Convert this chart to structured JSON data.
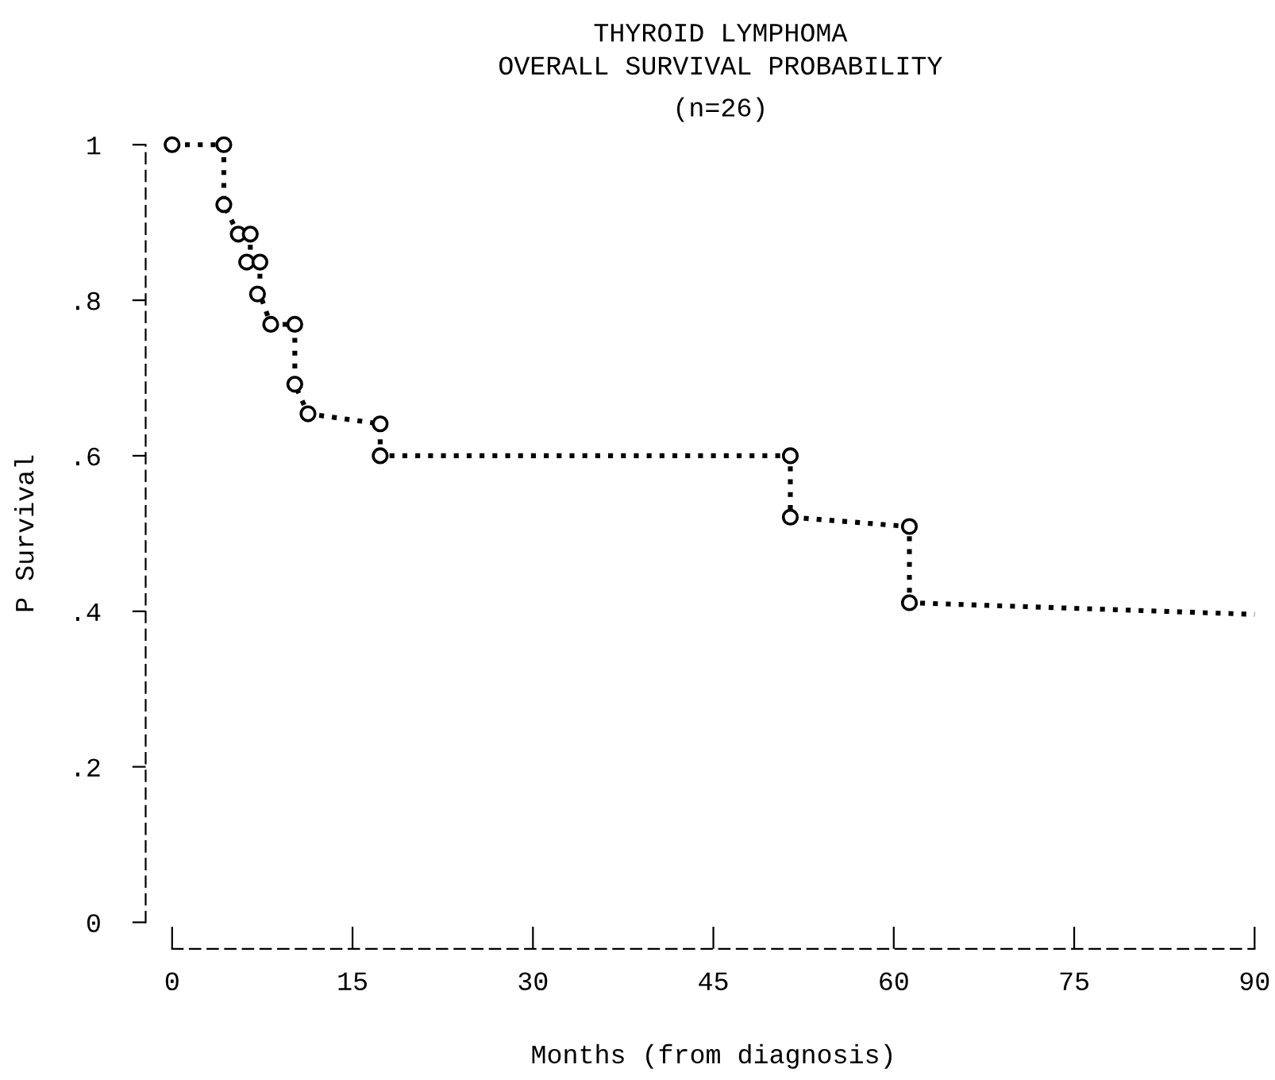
{
  "chart_data": {
    "type": "line",
    "title": "THYROID LYMPHOMA",
    "subtitle": "OVERALL SURVIVAL PROBABILITY\n(n=26)",
    "xlabel": "Months (from diagnosis)",
    "ylabel": "P Survival",
    "xlim": [
      0,
      90
    ],
    "ylim": [
      0,
      1
    ],
    "xticks": [
      0,
      15,
      30,
      45,
      60,
      75,
      90
    ],
    "yticks": [
      {
        "value": 0,
        "label": "0"
      },
      {
        "value": 0.2,
        "label": ".2"
      },
      {
        "value": 0.4,
        "label": ".4"
      },
      {
        "value": 0.6,
        "label": ".6"
      },
      {
        "value": 0.8,
        "label": ".8"
      },
      {
        "value": 1,
        "label": "1"
      }
    ],
    "grid": false,
    "legend": false,
    "series": [
      {
        "color": "#000000",
        "line_style": "dotted",
        "marker": "none",
        "x": [
          0,
          4.3,
          4.3,
          5.5,
          6.5,
          6.5,
          7.3,
          7.3,
          8.2,
          10.2,
          10.2,
          11.3,
          17.3,
          17.3,
          51.4,
          51.4,
          61.3,
          61.3,
          90
        ],
        "values": [
          1,
          1,
          0.923,
          0.885,
          0.885,
          0.849,
          0.849,
          0.808,
          0.769,
          0.769,
          0.692,
          0.654,
          0.641,
          0.6,
          0.6,
          0.521,
          0.509,
          0.411,
          0.396
        ]
      },
      {
        "type": "scatter",
        "color": "#000000",
        "marker": "circle",
        "x": [
          0,
          4.3,
          4.3,
          5.5,
          6.5,
          6.2,
          7.3,
          7.1,
          8.2,
          10.2,
          10.2,
          11.3,
          17.3,
          17.3,
          51.4,
          51.4,
          61.3,
          61.3
        ],
        "values": [
          1,
          1,
          0.923,
          0.885,
          0.885,
          0.849,
          0.849,
          0.808,
          0.769,
          0.769,
          0.692,
          0.654,
          0.641,
          0.6,
          0.6,
          0.521,
          0.509,
          0.411
        ]
      }
    ]
  }
}
